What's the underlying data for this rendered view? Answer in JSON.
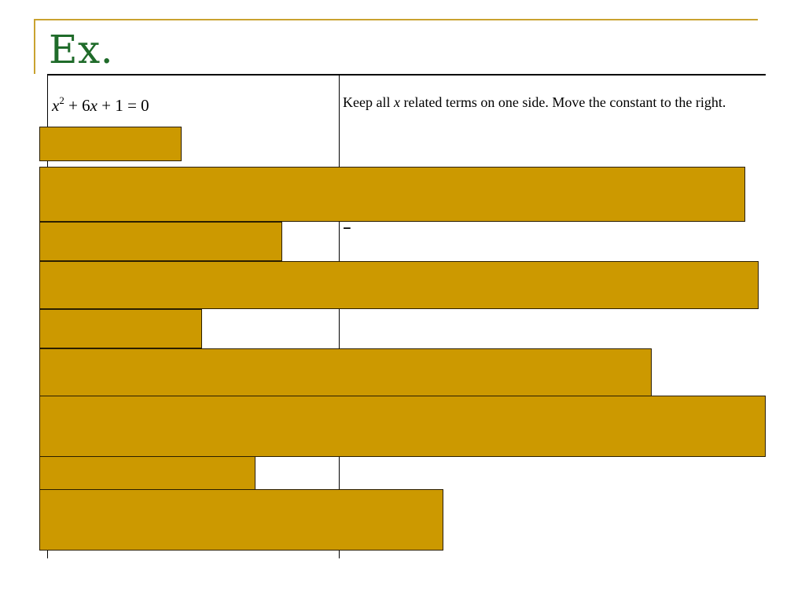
{
  "slide": {
    "title": "Ex.",
    "equation": {
      "x": "x",
      "exponent": "2",
      "rest": " + 6",
      "x2": "x",
      "tail": " + 1 = 0"
    },
    "instruction": {
      "part1": "Keep all ",
      "var": "x",
      "part2": " related terms on one side.  Move the constant to the right."
    }
  },
  "colors": {
    "title": "#1f6b2a",
    "accent_line": "#c9a230",
    "redaction_fill": "#cc9900"
  }
}
